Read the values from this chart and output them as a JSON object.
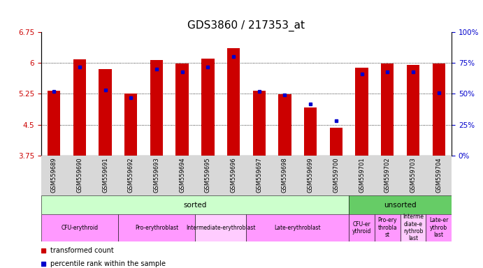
{
  "title": "GDS3860 / 217353_at",
  "samples": [
    "GSM559689",
    "GSM559690",
    "GSM559691",
    "GSM559692",
    "GSM559693",
    "GSM559694",
    "GSM559695",
    "GSM559696",
    "GSM559697",
    "GSM559698",
    "GSM559699",
    "GSM559700",
    "GSM559701",
    "GSM559702",
    "GSM559703",
    "GSM559704"
  ],
  "transformed_count": [
    5.32,
    6.09,
    5.85,
    5.26,
    6.07,
    5.99,
    6.1,
    6.36,
    5.32,
    5.24,
    4.92,
    4.42,
    5.88,
    5.99,
    5.95,
    5.99
  ],
  "percentile_rank": [
    52,
    72,
    53,
    47,
    70,
    68,
    72,
    80,
    52,
    49,
    42,
    28,
    66,
    68,
    68,
    51
  ],
  "y_min": 3.75,
  "y_max": 6.75,
  "y_ticks": [
    3.75,
    4.5,
    5.25,
    6.0,
    6.75
  ],
  "y_tick_labels": [
    "3.75",
    "4.5",
    "5.25",
    "6",
    "6.75"
  ],
  "right_y_ticks": [
    0,
    25,
    50,
    75,
    100
  ],
  "right_y_tick_labels": [
    "0%",
    "25%",
    "50%",
    "75%",
    "100%"
  ],
  "bar_color": "#cc0000",
  "dot_color": "#0000cc",
  "protocol_row": [
    {
      "label": "sorted",
      "start": 0,
      "end": 12,
      "color": "#ccffcc"
    },
    {
      "label": "unsorted",
      "start": 12,
      "end": 16,
      "color": "#66cc66"
    }
  ],
  "dev_stage_sorted": [
    {
      "label": "CFU-erythroid",
      "start": 0,
      "end": 3,
      "color": "#ff99ff"
    },
    {
      "label": "Pro-erythroblast",
      "start": 3,
      "end": 6,
      "color": "#ff99ff"
    },
    {
      "label": "Intermediate-erythroblast",
      "start": 6,
      "end": 8,
      "color": "#ffccff"
    },
    {
      "label": "Late-erythroblast",
      "start": 8,
      "end": 12,
      "color": "#ff99ff"
    }
  ],
  "dev_stage_unsorted": [
    {
      "label": "CFU-er\nythroid",
      "start": 12,
      "end": 13,
      "color": "#ff99ff"
    },
    {
      "label": "Pro-ery\nthrobla\nst",
      "start": 13,
      "end": 14,
      "color": "#ff99ff"
    },
    {
      "label": "Interme\ndiate-e\nrythrob\nlast",
      "start": 14,
      "end": 15,
      "color": "#ffccff"
    },
    {
      "label": "Late-er\nythrob\nlast",
      "start": 15,
      "end": 16,
      "color": "#ff99ff"
    }
  ],
  "xlabel_color": "#cc0000",
  "right_axis_color": "#0000cc",
  "title_fontsize": 11,
  "tick_fontsize": 7.5,
  "sample_label_fontsize": 6,
  "legend_fontsize": 7
}
